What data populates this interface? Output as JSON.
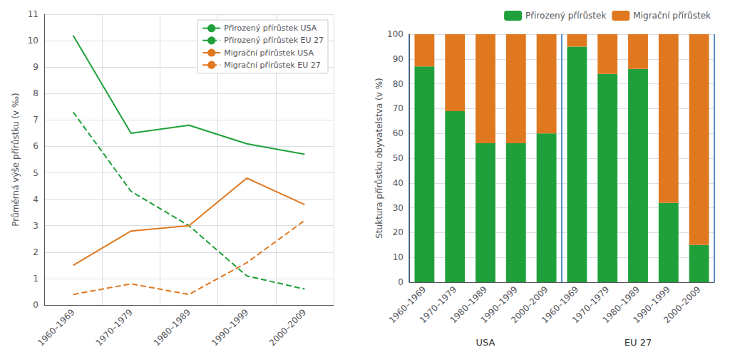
{
  "chart_data": [
    {
      "type": "line",
      "categories": [
        "1960–1969",
        "1970–1979",
        "1980–1989",
        "1990–1999",
        "2000–2009"
      ],
      "ylabel": "Průměrná výše přírůstku (v ‰)",
      "ylim": [
        0,
        11
      ],
      "yticks": [
        0,
        1,
        2,
        3,
        4,
        5,
        6,
        7,
        8,
        9,
        10,
        11
      ],
      "grid": true,
      "legend": "upper right",
      "series": [
        {
          "name": "Přirozený přírůstek USA",
          "color": "#1fa03a",
          "line_style": "solid",
          "values": [
            10.2,
            6.5,
            6.8,
            6.1,
            5.7
          ]
        },
        {
          "name": "Přirozený přírůstek EU 27",
          "color": "#1fa03a",
          "line_style": "dashed",
          "values": [
            7.3,
            4.3,
            3.0,
            1.1,
            0.6
          ]
        },
        {
          "name": "Migrační přírůstek USA",
          "color": "#e07820",
          "line_style": "solid",
          "values": [
            1.5,
            2.8,
            3.0,
            4.8,
            3.8
          ]
        },
        {
          "name": "Migrační přírůstek EU 27",
          "color": "#e07820",
          "line_style": "dashed",
          "values": [
            0.4,
            0.8,
            0.4,
            1.6,
            3.2
          ]
        }
      ]
    },
    {
      "type": "bar",
      "stacked": true,
      "categories": [
        "1960–1969",
        "1970–1979",
        "1980–1989",
        "1990–1999",
        "2000–2009",
        "1960–1969",
        "1970–1979",
        "1980–1989",
        "1990–1999",
        "2000–2009"
      ],
      "annotations": [
        "USA",
        "EU 27"
      ],
      "ylabel": "Stuktura přírůstku obyvatelstva (v %)",
      "ylim": [
        0,
        100
      ],
      "yticks": [
        0,
        10,
        20,
        30,
        40,
        50,
        60,
        70,
        80,
        90,
        100
      ],
      "grid": true,
      "legend": "upper right",
      "series": [
        {
          "name": "Přirozený přírůstek",
          "color": "#1fa03a",
          "values": [
            87,
            69,
            56,
            56,
            60,
            95,
            84,
            86,
            32,
            15
          ]
        },
        {
          "name": "Migrační přírůstek",
          "color": "#e07820",
          "values": [
            13,
            31,
            44,
            44,
            40,
            5,
            16,
            14,
            68,
            85
          ]
        }
      ]
    }
  ]
}
